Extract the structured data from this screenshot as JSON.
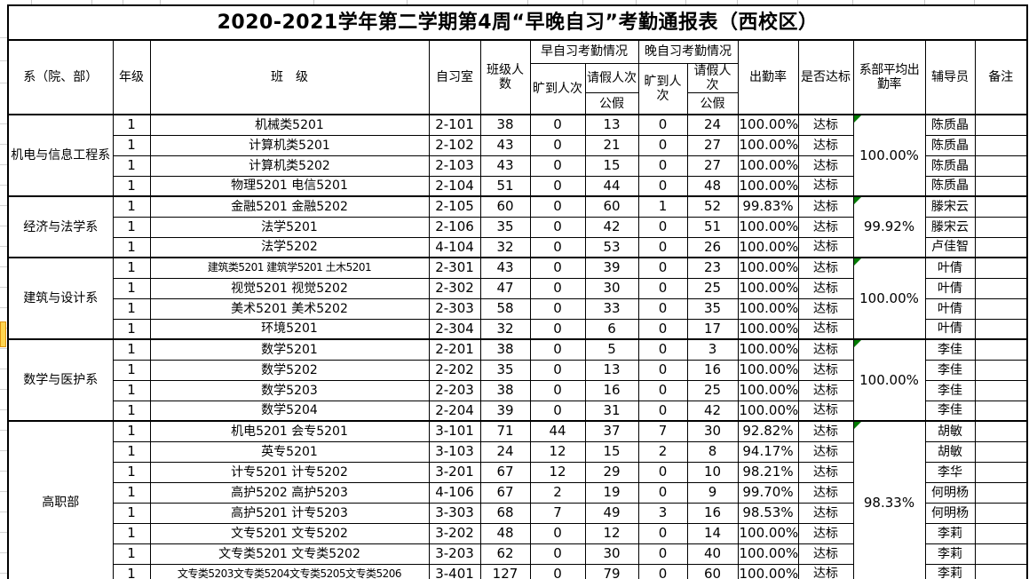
{
  "title": "2020-2021学年第二学期第4周“早晚自习”考勤通报表（西校区）",
  "columns": {
    "department": "系（院、部）",
    "grade": "年级",
    "class_name": "班　级",
    "room": "自习室",
    "size": "班级人数",
    "morning_group": "早自习考勤情况",
    "evening_group": "晚自习考勤情况",
    "absent_label": "旷到人次",
    "leave_label": "请假人次",
    "public_leave_label": "公假",
    "rate": "出勤率",
    "standard": "是否达标",
    "dept_avg": "系部平均出勤率",
    "counselor": "辅导员",
    "remark": "备注"
  },
  "sections": [
    {
      "department": "机电与信息工程系",
      "avg_rate": "100.00%",
      "rows": [
        {
          "grade": "1",
          "class_name": "机械类5201",
          "room": "2-101",
          "size": "38",
          "m_absent": "0",
          "m_leave": "13",
          "e_absent": "0",
          "e_leave": "24",
          "rate": "100.00%",
          "standard": "达标",
          "counselor": "陈质晶",
          "remark": ""
        },
        {
          "grade": "1",
          "class_name": "计算机类5201",
          "room": "2-102",
          "size": "43",
          "m_absent": "0",
          "m_leave": "21",
          "e_absent": "0",
          "e_leave": "27",
          "rate": "100.00%",
          "standard": "达标",
          "counselor": "陈质晶",
          "remark": ""
        },
        {
          "grade": "1",
          "class_name": "计算机类5202",
          "room": "2-103",
          "size": "43",
          "m_absent": "0",
          "m_leave": "15",
          "e_absent": "0",
          "e_leave": "27",
          "rate": "100.00%",
          "standard": "达标",
          "counselor": "陈质晶",
          "remark": ""
        },
        {
          "grade": "1",
          "class_name": "物理5201 电信5201",
          "room": "2-104",
          "size": "51",
          "m_absent": "0",
          "m_leave": "44",
          "e_absent": "0",
          "e_leave": "48",
          "rate": "100.00%",
          "standard": "达标",
          "counselor": "陈质晶",
          "remark": ""
        }
      ]
    },
    {
      "department": "经济与法学系",
      "avg_rate": "99.92%",
      "rows": [
        {
          "grade": "1",
          "class_name": "金融5201 金融5202",
          "room": "2-105",
          "size": "60",
          "m_absent": "0",
          "m_leave": "60",
          "e_absent": "1",
          "e_leave": "52",
          "rate": "99.83%",
          "standard": "达标",
          "counselor": "滕宋云",
          "remark": ""
        },
        {
          "grade": "1",
          "class_name": "法学5201",
          "room": "2-106",
          "size": "35",
          "m_absent": "0",
          "m_leave": "42",
          "e_absent": "0",
          "e_leave": "51",
          "rate": "100.00%",
          "standard": "达标",
          "counselor": "滕宋云",
          "remark": ""
        },
        {
          "grade": "1",
          "class_name": "法学5202",
          "room": "4-104",
          "size": "32",
          "m_absent": "0",
          "m_leave": "53",
          "e_absent": "0",
          "e_leave": "26",
          "rate": "100.00%",
          "standard": "达标",
          "counselor": "卢佳智",
          "remark": ""
        }
      ]
    },
    {
      "department": "建筑与设计系",
      "avg_rate": "100.00%",
      "rows": [
        {
          "grade": "1",
          "class_name": "建筑类5201  建筑学5201  土木5201",
          "room": "2-301",
          "size": "43",
          "m_absent": "0",
          "m_leave": "39",
          "e_absent": "0",
          "e_leave": "23",
          "rate": "100.00%",
          "standard": "达标",
          "counselor": "叶倩",
          "remark": ""
        },
        {
          "grade": "1",
          "class_name": "视觉5201 视觉5202",
          "room": "2-302",
          "size": "47",
          "m_absent": "0",
          "m_leave": "30",
          "e_absent": "0",
          "e_leave": "25",
          "rate": "100.00%",
          "standard": "达标",
          "counselor": "叶倩",
          "remark": ""
        },
        {
          "grade": "1",
          "class_name": "美术5201 美术5202",
          "room": "2-303",
          "size": "58",
          "m_absent": "0",
          "m_leave": "33",
          "e_absent": "0",
          "e_leave": "35",
          "rate": "100.00%",
          "standard": "达标",
          "counselor": "叶倩",
          "remark": ""
        },
        {
          "grade": "1",
          "class_name": "环境5201",
          "room": "2-304",
          "size": "32",
          "m_absent": "0",
          "m_leave": "6",
          "e_absent": "0",
          "e_leave": "17",
          "rate": "100.00%",
          "standard": "达标",
          "counselor": "叶倩",
          "remark": ""
        }
      ]
    },
    {
      "department": "数学与医护系",
      "avg_rate": "100.00%",
      "rows": [
        {
          "grade": "1",
          "class_name": "数学5201",
          "room": "2-201",
          "size": "38",
          "m_absent": "0",
          "m_leave": "5",
          "e_absent": "0",
          "e_leave": "3",
          "rate": "100.00%",
          "standard": "达标",
          "counselor": "李佳",
          "remark": ""
        },
        {
          "grade": "1",
          "class_name": "数学5202",
          "room": "2-202",
          "size": "35",
          "m_absent": "0",
          "m_leave": "13",
          "e_absent": "0",
          "e_leave": "16",
          "rate": "100.00%",
          "standard": "达标",
          "counselor": "李佳",
          "remark": ""
        },
        {
          "grade": "1",
          "class_name": "数学5203",
          "room": "2-203",
          "size": "38",
          "m_absent": "0",
          "m_leave": "16",
          "e_absent": "0",
          "e_leave": "25",
          "rate": "100.00%",
          "standard": "达标",
          "counselor": "李佳",
          "remark": ""
        },
        {
          "grade": "1",
          "class_name": "数学5204",
          "room": "2-204",
          "size": "39",
          "m_absent": "0",
          "m_leave": "31",
          "e_absent": "0",
          "e_leave": "42",
          "rate": "100.00%",
          "standard": "达标",
          "counselor": "李佳",
          "remark": ""
        }
      ]
    },
    {
      "department": "高职部",
      "avg_rate": "98.33%",
      "rows": [
        {
          "grade": "1",
          "class_name": "机电5201 会专5201",
          "room": "3-101",
          "size": "71",
          "m_absent": "44",
          "m_leave": "37",
          "e_absent": "7",
          "e_leave": "30",
          "rate": "92.82%",
          "standard": "达标",
          "counselor": "胡敏",
          "remark": ""
        },
        {
          "grade": "1",
          "class_name": "英专5201",
          "room": "3-103",
          "size": "24",
          "m_absent": "12",
          "m_leave": "15",
          "e_absent": "2",
          "e_leave": "8",
          "rate": "94.17%",
          "standard": "达标",
          "counselor": "胡敏",
          "remark": ""
        },
        {
          "grade": "1",
          "class_name": "计专5201 计专5202",
          "room": "3-201",
          "size": "67",
          "m_absent": "12",
          "m_leave": "29",
          "e_absent": "0",
          "e_leave": "10",
          "rate": "98.21%",
          "standard": "达标",
          "counselor": "李华",
          "remark": ""
        },
        {
          "grade": "1",
          "class_name": "高护5202 高护5203",
          "room": "4-106",
          "size": "67",
          "m_absent": "2",
          "m_leave": "19",
          "e_absent": "0",
          "e_leave": "9",
          "rate": "99.70%",
          "standard": "达标",
          "counselor": "何明杨",
          "remark": ""
        },
        {
          "grade": "1",
          "class_name": "高护5201 计专5203",
          "room": "3-303",
          "size": "68",
          "m_absent": "7",
          "m_leave": "49",
          "e_absent": "3",
          "e_leave": "16",
          "rate": "98.53%",
          "standard": "达标",
          "counselor": "何明杨",
          "remark": ""
        },
        {
          "grade": "1",
          "class_name": "文专5201  文专5202",
          "room": "3-202",
          "size": "48",
          "m_absent": "0",
          "m_leave": "12",
          "e_absent": "0",
          "e_leave": "14",
          "rate": "100.00%",
          "standard": "达标",
          "counselor": "李莉",
          "remark": ""
        },
        {
          "grade": "1",
          "class_name": "文专类5201 文专类5202",
          "room": "3-203",
          "size": "62",
          "m_absent": "0",
          "m_leave": "30",
          "e_absent": "0",
          "e_leave": "40",
          "rate": "100.00%",
          "standard": "达标",
          "counselor": "李莉",
          "remark": ""
        },
        {
          "grade": "1",
          "class_name": "文专类5203文专类5204文专类5205文专类5206",
          "room": "3-401",
          "size": "127",
          "m_absent": "0",
          "m_leave": "79",
          "e_absent": "0",
          "e_leave": "60",
          "rate": "100.00%",
          "standard": "达标",
          "counselor": "李莉",
          "remark": ""
        }
      ]
    }
  ],
  "colors": {
    "border": "#000000",
    "margin_grid": "#D4D4D4",
    "highlight_cell": "#FFD54F",
    "highlight_border": "#E1950F",
    "error_triangle": "#007B00"
  },
  "markers": {
    "green_triangle_icon": "cell corner marker on each 系部平均出勤率 merged cell",
    "highlighted_margin_cell": "yellow cell in left sheet margin near 数学5201 row"
  }
}
